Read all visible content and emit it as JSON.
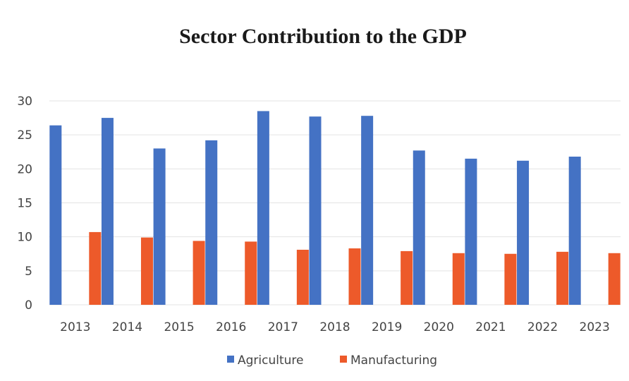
{
  "chart_data": {
    "type": "bar",
    "title": "Sector Contribution to the GDP",
    "xlabel": "",
    "ylabel": "",
    "categories": [
      "2013",
      "2014",
      "2015",
      "2016",
      "2017",
      "2018",
      "2019",
      "2020",
      "2021",
      "2022",
      "2023"
    ],
    "series": [
      {
        "name": "Agriculture",
        "color": "#4472C4",
        "values": [
          26.4,
          27.5,
          23.0,
          24.2,
          28.5,
          27.7,
          27.8,
          22.7,
          21.5,
          21.2,
          21.8
        ]
      },
      {
        "name": "Manufacturing",
        "color": "#ED5A2A",
        "values": [
          10.7,
          9.9,
          9.4,
          9.3,
          8.1,
          8.3,
          7.9,
          7.6,
          7.5,
          7.8,
          7.6
        ]
      }
    ],
    "ylim": [
      0,
      30
    ],
    "yticks": [
      "0",
      "5",
      "10",
      "15",
      "20",
      "25",
      "30"
    ],
    "grid": true,
    "legend_position": "bottom"
  }
}
